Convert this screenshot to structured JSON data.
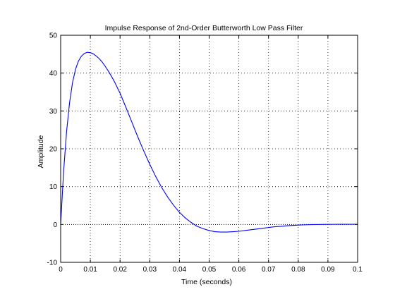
{
  "chart_data": {
    "type": "line",
    "title": "Impulse Response of 2nd-Order Butterworth Low Pass Filter",
    "xlabel": "Time (seconds)",
    "ylabel": "Amplitude",
    "xlim": [
      0,
      0.1
    ],
    "ylim": [
      -10,
      50
    ],
    "xticks": [
      0,
      0.01,
      0.02,
      0.03,
      0.04,
      0.05,
      0.06,
      0.07,
      0.08,
      0.09,
      0.1
    ],
    "xtick_labels": [
      "0",
      "0.01",
      "0.02",
      "0.03",
      "0.04",
      "0.05",
      "0.06",
      "0.07",
      "0.08",
      "0.09",
      "0.1"
    ],
    "yticks": [
      -10,
      0,
      10,
      20,
      30,
      40,
      50
    ],
    "ytick_labels": [
      "-10",
      "0",
      "10",
      "20",
      "30",
      "40",
      "50"
    ],
    "grid": true,
    "reference_line_y": 0,
    "colors": {
      "series": "#0000ff",
      "axes": "#000000",
      "grid": "#000000"
    },
    "series": [
      {
        "x": [
          0,
          0.001,
          0.002,
          0.003,
          0.004,
          0.005,
          0.006,
          0.007,
          0.008,
          0.009,
          0.01,
          0.011,
          0.012,
          0.013,
          0.014,
          0.015,
          0.016,
          0.017,
          0.018,
          0.019,
          0.02,
          0.022,
          0.024,
          0.026,
          0.028,
          0.03,
          0.032,
          0.034,
          0.036,
          0.038,
          0.04,
          0.042,
          0.044,
          0.046,
          0.048,
          0.05,
          0.052,
          0.054,
          0.056,
          0.058,
          0.06,
          0.062,
          0.064,
          0.066,
          0.068,
          0.07,
          0.072,
          0.074,
          0.076,
          0.078,
          0.08,
          0.082,
          0.084,
          0.086,
          0.088,
          0.09,
          0.092,
          0.094,
          0.096,
          0.098,
          0.1
        ],
        "y": [
          0,
          14.1,
          24.6,
          32.2,
          37.5,
          41.0,
          43.2,
          44.5,
          45.2,
          45.5,
          45.4,
          45.1,
          44.5,
          43.8,
          42.9,
          41.8,
          40.6,
          39.3,
          37.9,
          36.3,
          34.7,
          30.9,
          27.0,
          23.1,
          19.4,
          15.9,
          12.7,
          9.8,
          7.3,
          5.1,
          3.2,
          1.7,
          0.5,
          -0.5,
          -1.1,
          -1.6,
          -1.9,
          -2.0,
          -2.0,
          -1.9,
          -1.8,
          -1.6,
          -1.4,
          -1.2,
          -1.0,
          -0.8,
          -0.6,
          -0.5,
          -0.35,
          -0.25,
          -0.15,
          -0.1,
          -0.05,
          -0.02,
          0.0,
          0.02,
          0.04,
          0.05,
          0.05,
          0.05,
          0.05
        ]
      }
    ]
  }
}
